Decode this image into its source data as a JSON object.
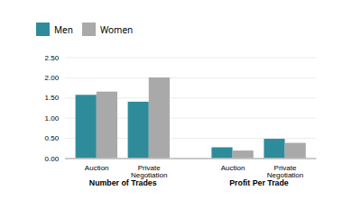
{
  "chart_data": {
    "type": "bar",
    "categories": [
      "Auction",
      "Private\nNegotiation",
      "Auction",
      "Private\nNegotiation"
    ],
    "series": [
      {
        "name": "Men",
        "color": "#2e8b9a",
        "values": [
          1.57,
          1.4,
          0.27,
          0.48
        ]
      },
      {
        "name": "Women",
        "color": "#a9a9a9",
        "values": [
          1.65,
          2.0,
          0.19,
          0.38
        ]
      }
    ],
    "annotations": [
      "Number of Trades",
      "Profit Per Trade"
    ],
    "ylim": [
      0,
      2.5
    ],
    "yticks": [
      {
        "value": 0.0,
        "label": "0.00"
      },
      {
        "value": 0.5,
        "label": "0.50"
      },
      {
        "value": 1.0,
        "label": "1.00"
      },
      {
        "value": 1.5,
        "label": "1.50"
      },
      {
        "value": 2.0,
        "label": "2.00"
      },
      {
        "value": 2.5,
        "label": "2.50"
      }
    ],
    "grid": true,
    "legend": "top"
  }
}
